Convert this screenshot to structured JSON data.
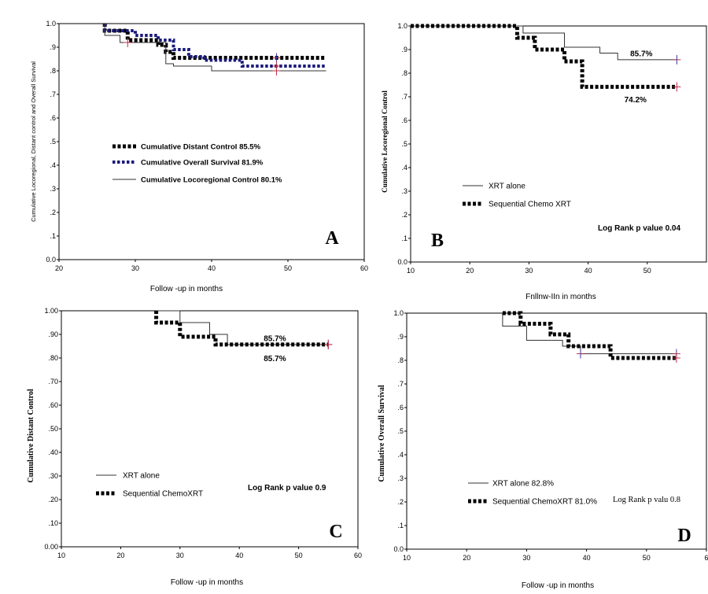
{
  "chart_data": [
    {
      "panel": "A",
      "type": "line",
      "ylabel": "Cumulative Locoregional, Distant control and Overall Survival",
      "xlabel": "Follow -up in months",
      "xlim": [
        20,
        60
      ],
      "ylim": [
        0,
        1
      ],
      "x_ticks": [
        "20",
        "30",
        "40",
        "50",
        "60"
      ],
      "y_ticks": [
        "0.0",
        ".1",
        ".2",
        ".3",
        ".4",
        ".5",
        ".6",
        ".7",
        ".8",
        ".9",
        "1.0"
      ],
      "grid": false,
      "legend_position": "center-left",
      "annotation": "",
      "series": [
        {
          "name": "Cumulative Distant Control 85.5%",
          "style": "thick-dash",
          "color": "#000000",
          "points": [
            [
              26,
              1.0
            ],
            [
              26,
              0.97
            ],
            [
              29,
              0.97
            ],
            [
              29,
              0.93
            ],
            [
              33,
              0.93
            ],
            [
              33,
              0.91
            ],
            [
              34,
              0.91
            ],
            [
              34,
              0.88
            ],
            [
              35,
              0.88
            ],
            [
              35,
              0.855
            ],
            [
              55,
              0.855
            ]
          ],
          "censored": [
            [
              48.5,
              0.855
            ]
          ]
        },
        {
          "name": "Cumulative Overall Survival 81.9%",
          "style": "blue-dash",
          "color": "#1a1a7a",
          "points": [
            [
              26,
              1.0
            ],
            [
              26,
              0.97
            ],
            [
              30,
              0.97
            ],
            [
              30,
              0.95
            ],
            [
              33,
              0.95
            ],
            [
              33,
              0.93
            ],
            [
              35,
              0.93
            ],
            [
              35,
              0.89
            ],
            [
              37,
              0.89
            ],
            [
              37,
              0.86
            ],
            [
              39,
              0.86
            ],
            [
              39,
              0.845
            ],
            [
              44,
              0.845
            ],
            [
              44,
              0.82
            ],
            [
              55,
              0.82
            ]
          ],
          "censored": [
            [
              48.5,
              0.82
            ]
          ]
        },
        {
          "name": "Cumulative Locoregional Control 80.1%",
          "style": "thin",
          "color": "#333333",
          "points": [
            [
              26,
              1.0
            ],
            [
              26,
              0.95
            ],
            [
              28,
              0.95
            ],
            [
              28,
              0.92
            ],
            [
              34,
              0.92
            ],
            [
              34,
              0.83
            ],
            [
              35,
              0.83
            ],
            [
              35,
              0.82
            ],
            [
              40,
              0.82
            ],
            [
              40,
              0.8
            ],
            [
              55,
              0.8
            ]
          ],
          "censored": [
            [
              29,
              0.92
            ],
            [
              48.5,
              0.8
            ]
          ]
        }
      ],
      "data_labels": []
    },
    {
      "panel": "B",
      "type": "line",
      "ylabel": "Cumulative Locoregional Control",
      "xlabel": "Fnllnw-IIn in months",
      "xlim": [
        10,
        60
      ],
      "ylim": [
        0,
        1
      ],
      "x_ticks": [
        "10",
        "20",
        "30",
        "40",
        "50"
      ],
      "y_ticks": [
        "0.0",
        ".1",
        ".2",
        ".3",
        ".4",
        ".5",
        ".6",
        ".7",
        ".8",
        ".9",
        "1.0"
      ],
      "grid": false,
      "legend_position": "center-left",
      "annotation": "Log Rank p value 0.04",
      "series": [
        {
          "name": "XRT alone",
          "style": "thin",
          "color": "#333333",
          "points": [
            [
              10,
              1.0
            ],
            [
              29,
              1.0
            ],
            [
              29,
              0.97
            ],
            [
              36,
              0.97
            ],
            [
              36,
              0.91
            ],
            [
              42,
              0.91
            ],
            [
              42,
              0.885
            ],
            [
              45,
              0.885
            ],
            [
              45,
              0.857
            ],
            [
              55,
              0.857
            ]
          ],
          "censored": [
            [
              55,
              0.857
            ]
          ]
        },
        {
          "name": "Sequential Chemo XRT",
          "style": "thick-dash",
          "color": "#000000",
          "points": [
            [
              10,
              1.0
            ],
            [
              28,
              1.0
            ],
            [
              28,
              0.95
            ],
            [
              31,
              0.95
            ],
            [
              31,
              0.9
            ],
            [
              36,
              0.9
            ],
            [
              36,
              0.85
            ],
            [
              39,
              0.85
            ],
            [
              39,
              0.742
            ],
            [
              55,
              0.742
            ]
          ],
          "censored": [
            [
              55,
              0.742
            ]
          ]
        }
      ],
      "data_labels": [
        {
          "text": "85.7%",
          "x": 49,
          "y": 0.885
        },
        {
          "text": "74.2%",
          "x": 48,
          "y": 0.69
        }
      ]
    },
    {
      "panel": "C",
      "type": "line",
      "ylabel": "Cumulative Distant Control",
      "xlabel": "Follow -up in months",
      "xlim": [
        10,
        60
      ],
      "ylim": [
        0,
        1
      ],
      "x_ticks": [
        "10",
        "20",
        "30",
        "40",
        "50",
        "60"
      ],
      "y_ticks": [
        "0.00",
        ".10",
        ".20",
        ".30",
        ".40",
        ".50",
        ".60",
        ".70",
        ".80",
        ".90",
        "1.00"
      ],
      "grid": false,
      "legend_position": "bottom-left",
      "annotation": "Log Rank p value   0.9",
      "series": [
        {
          "name": "XRT alone",
          "style": "thin",
          "color": "#333333",
          "points": [
            [
              26,
              1.0
            ],
            [
              30,
              1.0
            ],
            [
              30,
              0.95
            ],
            [
              35,
              0.95
            ],
            [
              35,
              0.9
            ],
            [
              38,
              0.9
            ],
            [
              38,
              0.857
            ],
            [
              55,
              0.857
            ]
          ],
          "censored": [
            [
              55,
              0.857
            ]
          ]
        },
        {
          "name": "Sequential  ChemoXRT",
          "style": "thick-dash",
          "color": "#000000",
          "points": [
            [
              26,
              1.0
            ],
            [
              26,
              0.95
            ],
            [
              30,
              0.95
            ],
            [
              30,
              0.89
            ],
            [
              36,
              0.89
            ],
            [
              36,
              0.857
            ],
            [
              55,
              0.857
            ]
          ],
          "censored": [
            [
              55,
              0.857
            ]
          ]
        }
      ],
      "data_labels": [
        {
          "text": "85.7%",
          "x": 46,
          "y": 0.885
        },
        {
          "text": "85.7%",
          "x": 46,
          "y": 0.8
        }
      ]
    },
    {
      "panel": "D",
      "type": "line",
      "ylabel": "Cumulative Overall Survival",
      "xlabel": "Follow -up in months",
      "xlim": [
        10,
        60
      ],
      "ylim": [
        0,
        1
      ],
      "x_ticks": [
        "10",
        "20",
        "30",
        "40",
        "50",
        "6"
      ],
      "y_ticks": [
        "0.0",
        ".1",
        ".2",
        ".3",
        ".4",
        ".5",
        ".6",
        ".7",
        ".8",
        ".9",
        "1.0"
      ],
      "grid": false,
      "legend_position": "bottom-left",
      "annotation": "Log Rank p valu 0.8",
      "series": [
        {
          "name": "XRT alone   82.8%",
          "style": "thin",
          "color": "#333333",
          "points": [
            [
              26,
              1.0
            ],
            [
              26,
              0.945
            ],
            [
              30,
              0.945
            ],
            [
              30,
              0.885
            ],
            [
              36,
              0.885
            ],
            [
              36,
              0.86
            ],
            [
              39,
              0.86
            ],
            [
              39,
              0.828
            ],
            [
              55,
              0.828
            ]
          ],
          "censored": [
            [
              39,
              0.828
            ],
            [
              55,
              0.828
            ]
          ]
        },
        {
          "name": "Sequential  ChemoXRT  81.0%",
          "style": "thick-dash",
          "color": "#000000",
          "points": [
            [
              26,
              1.0
            ],
            [
              29,
              1.0
            ],
            [
              29,
              0.955
            ],
            [
              34,
              0.955
            ],
            [
              34,
              0.91
            ],
            [
              37,
              0.91
            ],
            [
              37,
              0.86
            ],
            [
              44,
              0.86
            ],
            [
              44,
              0.81
            ],
            [
              55,
              0.81
            ]
          ],
          "censored": [
            [
              55,
              0.81
            ]
          ]
        }
      ],
      "data_labels": []
    }
  ],
  "panel_letters": [
    "A",
    "B",
    "C",
    "D"
  ]
}
